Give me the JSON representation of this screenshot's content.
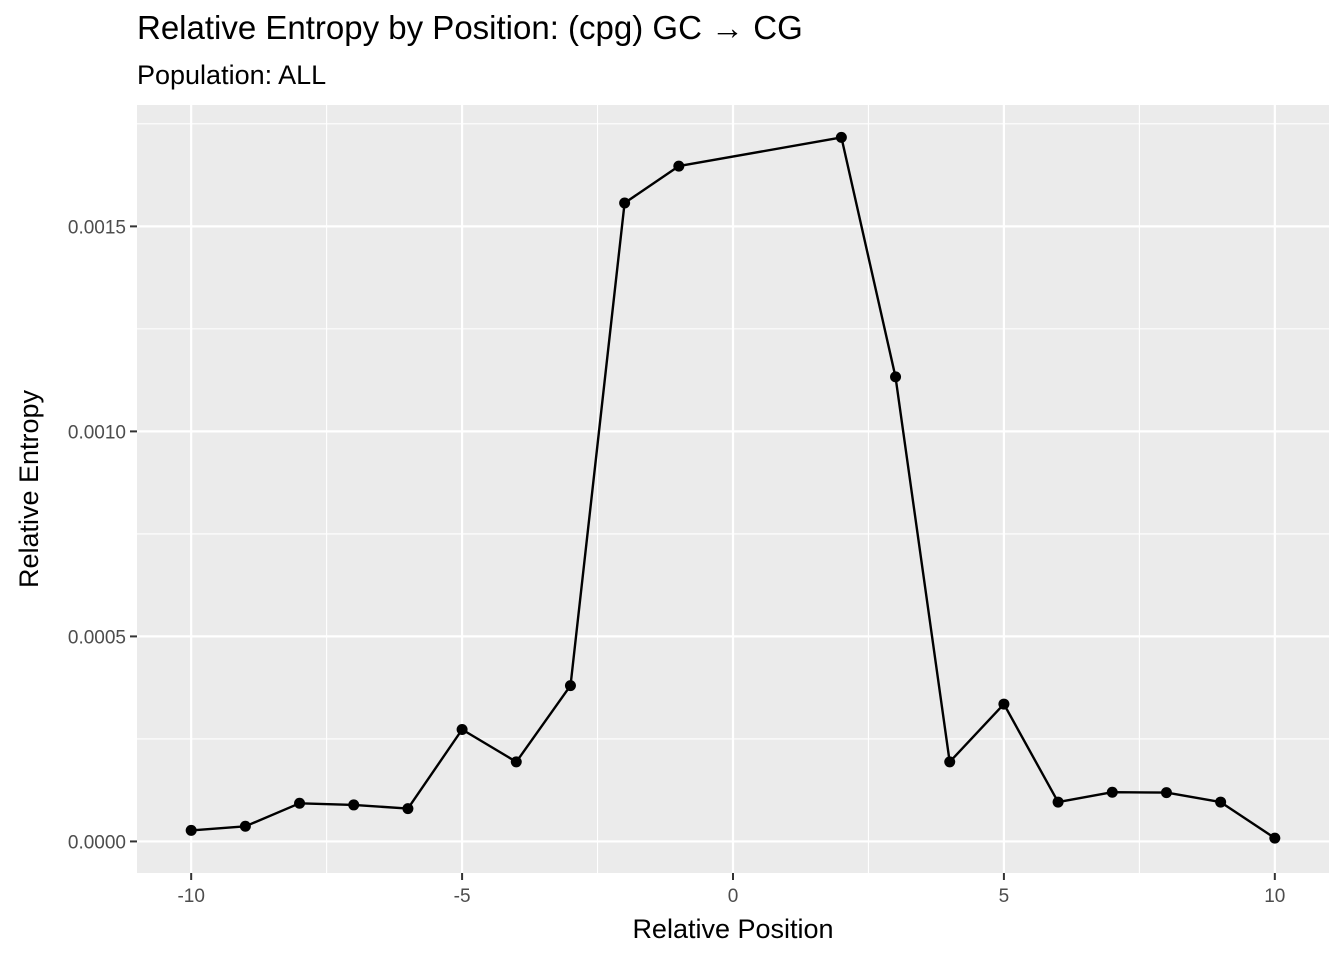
{
  "chart_data": {
    "type": "line",
    "title": "Relative Entropy by Position: (cpg) GC → CG",
    "subtitle": "Population: ALL",
    "xlabel": "Relative Position",
    "ylabel": "Relative Entropy",
    "x": [
      -10,
      -9,
      -8,
      -7,
      -6,
      -5,
      -4,
      -3,
      -2,
      -1,
      2,
      3,
      4,
      5,
      6,
      7,
      8,
      9,
      10
    ],
    "y": [
      2.7e-05,
      3.7e-05,
      9.3e-05,
      8.9e-05,
      8e-05,
      0.000273,
      0.000194,
      0.00038,
      0.001557,
      0.001647,
      0.001717,
      0.001133,
      0.000194,
      0.000335,
      9.6e-05,
      0.00012,
      0.000119,
      9.6e-05,
      8e-06
    ],
    "xlim": [
      -11,
      11
    ],
    "ylim": [
      -7.7e-05,
      0.001796
    ],
    "x_ticks": [
      -10,
      -5,
      0,
      5,
      10
    ],
    "x_tick_labels": [
      "-10",
      "-5",
      "0",
      "5",
      "10"
    ],
    "y_ticks": [
      0.0,
      0.0005,
      0.001,
      0.0015
    ],
    "y_tick_labels": [
      "0.0000",
      "0.0005",
      "0.0010",
      "0.0015"
    ],
    "grid": true,
    "colors": {
      "panel": "#ebebeb",
      "grid": "#ffffff",
      "line": "#000000",
      "point": "#000000"
    }
  }
}
